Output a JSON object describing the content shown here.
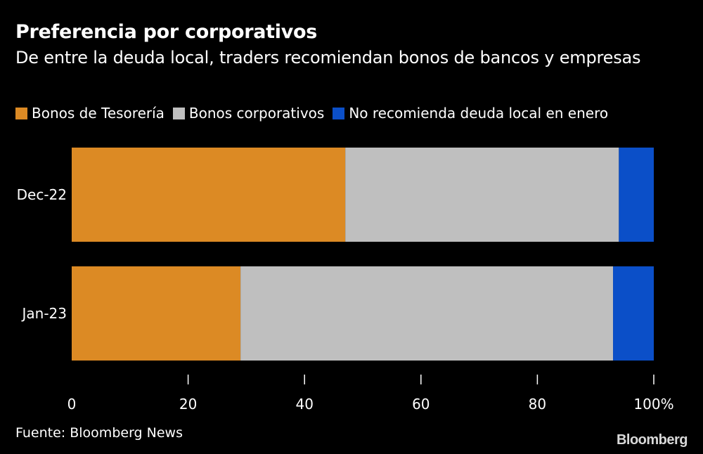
{
  "header": {
    "title": "Preferencia por corporativos",
    "subtitle": "De entre la deuda local, traders recomiendan bonos de bancos y empresas"
  },
  "footer": {
    "source": "Fuente: Bloomberg News",
    "logo": "Bloomberg"
  },
  "chart_data": {
    "type": "bar",
    "orientation": "horizontal",
    "stacked": true,
    "categories": [
      "Dec-22",
      "Jan-23"
    ],
    "series": [
      {
        "name": "Bonos de Tesorería",
        "color": "#dc8a24",
        "values": [
          47,
          29
        ]
      },
      {
        "name": "Bonos corporativos",
        "color": "#bfbfbf",
        "values": [
          47,
          64
        ]
      },
      {
        "name": "No recomienda deuda local en enero",
        "color": "#0b4fc8",
        "values": [
          6,
          7
        ]
      }
    ],
    "xlim": [
      0,
      100
    ],
    "xticks": [
      "0",
      "20",
      "40",
      "60",
      "80",
      "100%"
    ],
    "xtick_values": [
      0,
      20,
      40,
      60,
      80,
      100
    ],
    "legend": "top-left",
    "grid": false
  }
}
